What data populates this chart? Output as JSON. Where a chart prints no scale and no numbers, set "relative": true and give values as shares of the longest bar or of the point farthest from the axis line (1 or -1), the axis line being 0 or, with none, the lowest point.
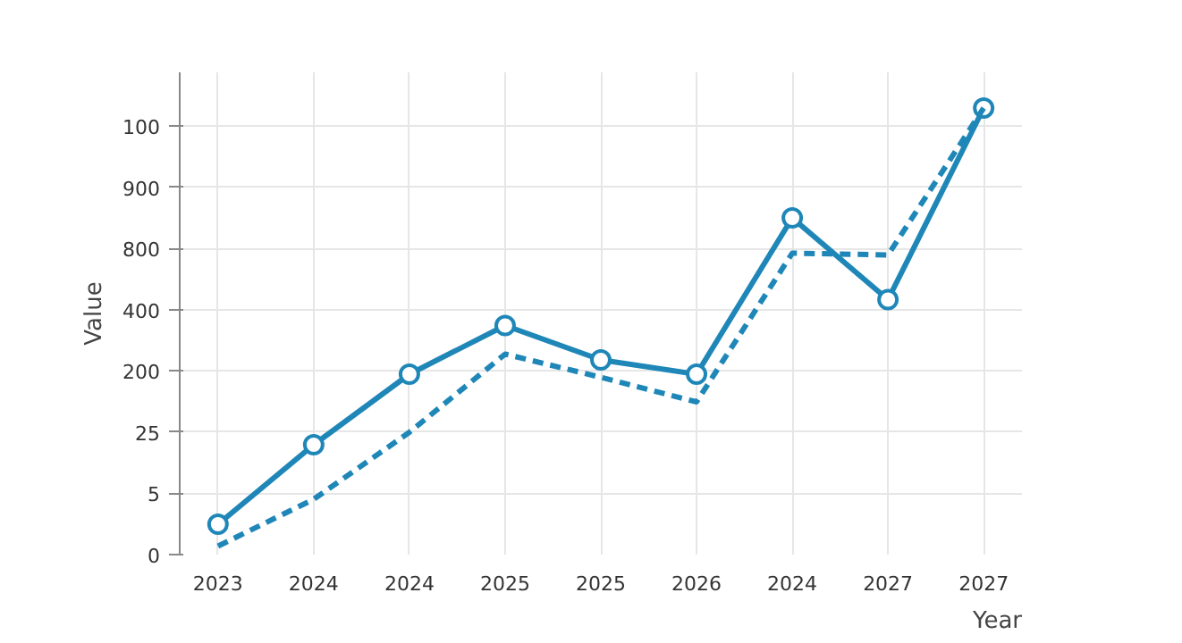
{
  "chart_data": {
    "type": "line",
    "xlabel": "Year",
    "ylabel": "Value",
    "relative": true,
    "categories": [
      "2023",
      "2024",
      "2024",
      "2025",
      "2025",
      "2026",
      "2024",
      "2027",
      "2027"
    ],
    "y_categories": [
      "100",
      "900",
      "800",
      "400",
      "200",
      "25",
      "5",
      "0"
    ],
    "series": [
      {
        "color": "#1f87b8",
        "values": [
          0.068,
          0.246,
          0.404,
          0.513,
          0.436,
          0.404,
          0.754,
          0.571,
          1
        ],
        "marker": "circle",
        "line_style": "solid"
      },
      {
        "color": "#1f87b8",
        "values": [
          0.019,
          0.124,
          0.274,
          0.449,
          0.397,
          0.342,
          0.675,
          0.671,
          1
        ],
        "line_style": "dashed"
      }
    ],
    "grid": true
  }
}
